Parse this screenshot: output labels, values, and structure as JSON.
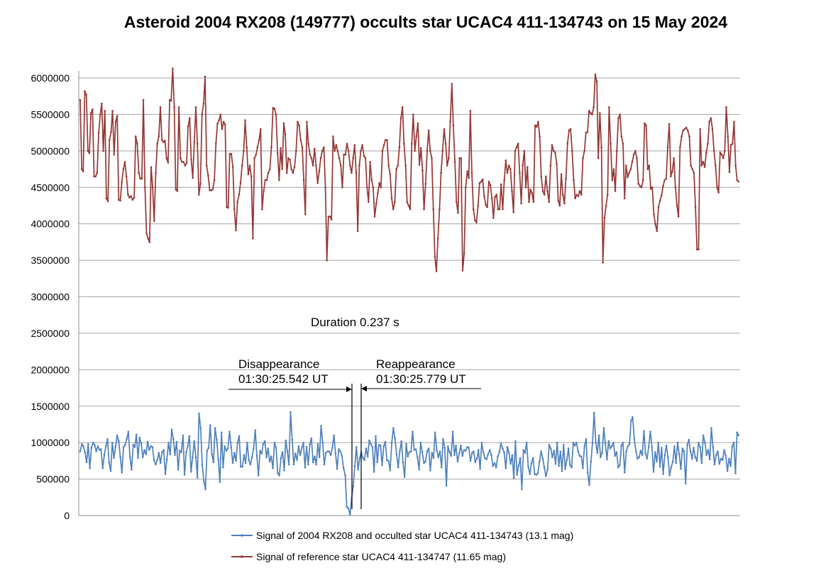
{
  "chart_data": {
    "type": "line",
    "title": "Asteroid 2004 RX208 (149777) occults star UCAC4 411-134743 on 15 May 2024",
    "xlabel": "",
    "ylabel": "",
    "ylim": [
      0,
      6000000
    ],
    "yticks": [
      0,
      500000,
      1000000,
      1500000,
      2000000,
      2500000,
      3000000,
      3500000,
      4000000,
      4500000,
      5000000,
      5500000,
      6000000
    ],
    "grid": true,
    "legend": "bottom",
    "series": [
      {
        "name": "Signal of 2004 RX208 and occulted star UCAC4 411-134743 (13.1 mag)",
        "color": "#4f81bd",
        "values": [
          880000,
          980000,
          950000,
          870000,
          730000,
          980000,
          650000,
          930000,
          1000000,
          970000,
          880000,
          950000,
          900000,
          910000,
          650000,
          830000,
          950000,
          1050000,
          730000,
          610000,
          1000000,
          790000,
          940000,
          1100000,
          1020000,
          800000,
          590000,
          940000,
          970000,
          1050000,
          1150000,
          800000,
          630000,
          970000,
          940000,
          1110000,
          790000,
          1070000,
          990000,
          800000,
          900000,
          840000,
          1010000,
          900000,
          950000,
          940000,
          760000,
          700000,
          760000,
          860000,
          720000,
          870000,
          900000,
          570000,
          770000,
          1000000,
          840000,
          1180000,
          1050000,
          830000,
          1010000,
          630000,
          890000,
          870000,
          1100000,
          560000,
          870000,
          950000,
          1090000,
          600000,
          800000,
          1020000,
          800000,
          520000,
          1400000,
          1200000,
          700000,
          470000,
          360000,
          890000,
          930000,
          1240000,
          840000,
          730000,
          1200000,
          1040000,
          770000,
          460000,
          1140000,
          660000,
          950000,
          890000,
          920000,
          1150000,
          940000,
          720000,
          860000,
          750000,
          1000000,
          1090000,
          670000,
          670000,
          830000,
          720000,
          1000000,
          760000,
          700000,
          800000,
          920000,
          1170000,
          820000,
          550000,
          890000,
          850000,
          980000,
          1020000,
          800000,
          920000,
          740000,
          810000,
          650000,
          1000000,
          930000,
          580000,
          550000,
          790000,
          870000,
          620000,
          1030000,
          880000,
          700000,
          1420000,
          1040000,
          700000,
          850000,
          760000,
          950000,
          830000,
          930000,
          1000000,
          660000,
          940000,
          700000,
          980000,
          1060000,
          730000,
          810000,
          700000,
          980000,
          800000,
          1230000,
          1000000,
          700000,
          860000,
          880000,
          880000,
          830000,
          930000,
          1100000,
          850000,
          640000,
          910000,
          880000,
          820000,
          650000,
          550000,
          120000,
          100000,
          10000,
          230000,
          400000,
          680000,
          940000,
          630000,
          780000,
          870000,
          790000,
          760000,
          920000,
          810000,
          1030000,
          980000,
          940000,
          600000,
          1090000,
          730000,
          970000,
          960000,
          690000,
          950000,
          1010000,
          760000,
          750000,
          620000,
          1000000,
          1200000,
          1060000,
          840000,
          660000,
          880000,
          1020000,
          730000,
          530000,
          980000,
          810000,
          870000,
          880000,
          1150000,
          900000,
          910000,
          800000,
          630000,
          1000000,
          870000,
          720000,
          740000,
          880000,
          920000,
          620000,
          860000,
          790000,
          1140000,
          900000,
          800000,
          880000,
          660000,
          1050000,
          930000,
          410000,
          950000,
          870000,
          820000,
          1150000,
          830000,
          960000,
          740000,
          850000,
          960000,
          820000,
          900000,
          890000,
          940000,
          930000,
          750000,
          860000,
          880000,
          730000,
          780000,
          900000,
          640000,
          1000000,
          870000,
          790000,
          770000,
          840000,
          900000,
          830000,
          680000,
          720000,
          660000,
          810000,
          870000,
          990000,
          920000,
          870000,
          650000,
          940000,
          860000,
          710000,
          830000,
          510000,
          1020000,
          560000,
          680000,
          790000,
          360000,
          900000,
          860000,
          1000000,
          670000,
          570000,
          720000,
          790000,
          570000,
          560000,
          580000,
          740000,
          880000,
          780000,
          660000,
          540000,
          630000,
          970000,
          920000,
          800000,
          890000,
          710000,
          1000000,
          680000,
          880000,
          610000,
          970000,
          640000,
          760000,
          920000,
          690000,
          660000,
          1000000,
          960000,
          1000000,
          880000,
          820000,
          810000,
          650000,
          950000,
          1050000,
          590000,
          420000,
          740000,
          990000,
          1410000,
          1000000,
          860000,
          1100000,
          800000,
          860000,
          1200000,
          990000,
          770000,
          1020000,
          920000,
          950000,
          1000000,
          820000,
          870000,
          660000,
          690000,
          960000,
          1000000,
          590000,
          880000,
          950000,
          980000,
          1300000,
          1350000,
          1050000,
          890000,
          780000,
          800000,
          890000,
          830000,
          1160000,
          850000,
          780000,
          940000,
          1150000,
          940000,
          600000,
          870000,
          740000,
          1000000,
          670000,
          930000,
          570000,
          830000,
          960000,
          800000,
          550000,
          660000,
          740000,
          950000,
          720000,
          1000000,
          840000,
          640000,
          920000,
          880000,
          440000,
          970000,
          1040000,
          880000,
          780000,
          930000,
          800000,
          750000,
          1000000,
          940000,
          720000,
          1100000,
          1000000,
          830000,
          900000,
          770000,
          1200000,
          940000,
          700000,
          830000,
          880000,
          710000,
          780000,
          760000,
          900000,
          820000,
          610000,
          780000,
          680000,
          950000,
          1000000,
          580000,
          1140000,
          1100000
        ]
      },
      {
        "name": "Signal of reference star UCAC4 411-134747 (11.65 mag)",
        "color": "#953735",
        "values": [
          5700000,
          4750000,
          4720000,
          5820000,
          5770000,
          5000000,
          4970000,
          5520000,
          5570000,
          4650000,
          4650000,
          4700000,
          5250000,
          5500000,
          5650000,
          5000000,
          5550000,
          4350000,
          4310000,
          5150000,
          5260000,
          5550000,
          4950000,
          5400000,
          5480000,
          4330000,
          4320000,
          4570000,
          4750000,
          4850000,
          4650000,
          4400000,
          4360000,
          4380000,
          4330000,
          4360000,
          5200000,
          5100000,
          4700000,
          4620000,
          4620000,
          5700000,
          4500000,
          3870000,
          3800000,
          3750000,
          4780000,
          4500000,
          4040000,
          4700000,
          5100000,
          5200000,
          5600000,
          5150000,
          5120000,
          5140000,
          4900000,
          4840000,
          5700000,
          5690000,
          6130000,
          5600000,
          4470000,
          4450000,
          5600000,
          4900000,
          4850000,
          4850000,
          4800000,
          4830000,
          5340000,
          5450000,
          4880000,
          4630000,
          5120000,
          5600000,
          5100000,
          4400000,
          4550000,
          5500000,
          5650000,
          6020000,
          4800000,
          4660000,
          4460000,
          4460000,
          4470000,
          4600000,
          5100000,
          5370000,
          5420000,
          5500000,
          5300000,
          5400000,
          5360000,
          4230000,
          4220000,
          4960000,
          4960000,
          4780000,
          4200000,
          3910000,
          4300000,
          4400000,
          4560000,
          4800000,
          5000000,
          5420000,
          5050000,
          4680000,
          4800000,
          4650000,
          3800000,
          4900000,
          4950000,
          5050000,
          5150000,
          5300000,
          4200000,
          4450000,
          4600000,
          4600000,
          4700000,
          4750000,
          5050000,
          5590000,
          5580000,
          5500000,
          4970000,
          4600000,
          5040000,
          4750000,
          5380000,
          5230000,
          4700000,
          4900000,
          4880000,
          4750000,
          4700000,
          4780000,
          5000000,
          5400000,
          5350000,
          5150000,
          5050000,
          4600000,
          4130000,
          5400000,
          5100000,
          4950000,
          4900000,
          4800000,
          5030000,
          4800000,
          4560000,
          4720000,
          4900000,
          5000000,
          5050000,
          4500000,
          3500000,
          4100000,
          4100000,
          4060000,
          5200000,
          5000000,
          5080000,
          5000000,
          4900000,
          4800000,
          4500000,
          4950000,
          4950000,
          5100000,
          5000000,
          4800000,
          4700000,
          4900000,
          5080000,
          4700000,
          3900000,
          4800000,
          5000000,
          5080000,
          4930000,
          4900000,
          4500000,
          4300000,
          4850000,
          4600000,
          4500000,
          4100000,
          4280000,
          4420000,
          4560000,
          4500000,
          5000000,
          5080000,
          5150000,
          5150000,
          4800000,
          4680000,
          4350000,
          4200000,
          4300000,
          4750000,
          4800000,
          5050000,
          5450000,
          5600000,
          5100000,
          4800000,
          4300000,
          4250000,
          4200000,
          5100000,
          5500000,
          5000000,
          5200000,
          5380000,
          4810000,
          5040000,
          4730000,
          4200000,
          4550000,
          5000000,
          5280000,
          5000000,
          4900000,
          4200000,
          3550000,
          3350000,
          3800000,
          4200000,
          4700000,
          5000000,
          5300000,
          5100000,
          4800000,
          4900000,
          5400000,
          5920000,
          5350000,
          4850000,
          4300000,
          4150000,
          4900000,
          4900000,
          3360000,
          3600000,
          4500000,
          4720000,
          4630000,
          5550000,
          4700000,
          4200000,
          4050000,
          4020000,
          4250000,
          4560000,
          4580000,
          4610000,
          4380000,
          4260000,
          4230000,
          4580000,
          4530000,
          4350000,
          4080000,
          4370000,
          4400000,
          4200000,
          4200000,
          4540000,
          4200000,
          4600000,
          4870000,
          4700000,
          4800000,
          4750000,
          4450000,
          4160000,
          5000000,
          5050000,
          5100000,
          4700000,
          4280000,
          4800000,
          5000000,
          4500000,
          4780000,
          4300000,
          4470000,
          4420000,
          4300000,
          5350000,
          5330000,
          5400000,
          5200000,
          4650000,
          4450000,
          4400000,
          4650000,
          4450000,
          4300000,
          4800000,
          5080000,
          5000000,
          4980000,
          4820000,
          4320000,
          4250000,
          4680000,
          4400000,
          4280000,
          4620000,
          5100000,
          5280000,
          5300000,
          5000000,
          4600000,
          4350000,
          4400000,
          4380000,
          4450000,
          4400000,
          4900000,
          5000000,
          5250000,
          5260000,
          5550000,
          5520000,
          5500000,
          5600000,
          6050000,
          5950000,
          4900000,
          5520000,
          5050000,
          3470000,
          4080000,
          4250000,
          4400000,
          5600000,
          5100000,
          4600000,
          4750000,
          4450000,
          5000000,
          5450000,
          5500000,
          5200000,
          5100000,
          4350000,
          4800000,
          4640000,
          4700000,
          4750000,
          4850000,
          4950000,
          5000000,
          4900000,
          4550000,
          4520000,
          4500000,
          4600000,
          5380000,
          5350000,
          4750000,
          4800000,
          4480000,
          4500000,
          4130000,
          4000000,
          3900000,
          4230000,
          4320000,
          4390000,
          4520000,
          4600000,
          4620000,
          5050000,
          5370000,
          4650000,
          4720000,
          4900000,
          4500000,
          4250000,
          4100000,
          5050000,
          5200000,
          5280000,
          5300000,
          5320000,
          5280000,
          5200000,
          4800000,
          4750000,
          4700000,
          4230000,
          3650000,
          3650000,
          5300000,
          4800000,
          4850000,
          4780000,
          4980000,
          5100000,
          5400000,
          5450000,
          5300000,
          5000000,
          4800000,
          4500000,
          4430000,
          4980000,
          4950000,
          4900000,
          5000000,
          5600000,
          5200000,
          4710000,
          5080000,
          5100000,
          5400000,
          4800000,
          4600000,
          4580000
        ]
      }
    ],
    "annotations": {
      "duration": "Duration 0.237 s",
      "disappearance_label": "Disappearance",
      "disappearance_time": "01:30:25.542 UT",
      "reappearance_label": "Reappearance",
      "reappearance_time": "01:30:25.779 UT"
    }
  }
}
